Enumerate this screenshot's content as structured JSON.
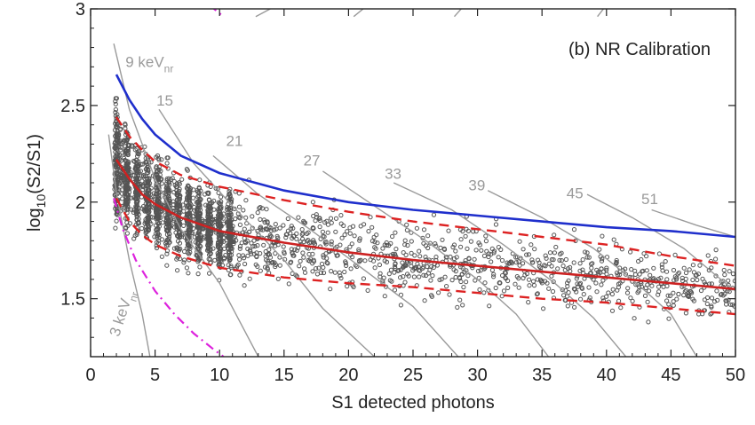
{
  "chart_data": {
    "type": "scatter",
    "panel_label": "(b) NR Calibration",
    "xlabel": "S1 detected photons",
    "ylabel_main": "log",
    "ylabel_sub": "10",
    "ylabel_rest": "(S2/S1)",
    "xlim": [
      0,
      50
    ],
    "ylim": [
      1.2,
      3.0
    ],
    "x_ticks": [
      0,
      5,
      10,
      15,
      20,
      25,
      30,
      35,
      40,
      45,
      50
    ],
    "x_tick_labels": [
      "0",
      "5",
      "10",
      "15",
      "20",
      "25",
      "30",
      "35",
      "40",
      "45",
      "50"
    ],
    "y_ticks": [
      1.5,
      2,
      2.5,
      3
    ],
    "y_tick_labels": [
      "1.5",
      "2",
      "2.5",
      "3"
    ],
    "colors": {
      "points": "#555555",
      "band_median": "#cc2222",
      "band_edge": "#dd2222",
      "er_median": "#1f2fcc",
      "contour": "#9a9a9a",
      "threshold": "#dd22dd"
    },
    "series": [
      {
        "role": "er_band_median",
        "style": "solid-blue",
        "points": [
          [
            2.0,
            2.66
          ],
          [
            3,
            2.53
          ],
          [
            4,
            2.43
          ],
          [
            5,
            2.35
          ],
          [
            7,
            2.24
          ],
          [
            10,
            2.15
          ],
          [
            15,
            2.06
          ],
          [
            20,
            2.0
          ],
          [
            25,
            1.96
          ],
          [
            30,
            1.93
          ],
          [
            35,
            1.9
          ],
          [
            40,
            1.87
          ],
          [
            45,
            1.85
          ],
          [
            50,
            1.82
          ]
        ]
      },
      {
        "role": "nr_band_median",
        "style": "solid-red",
        "points": [
          [
            2.0,
            2.22
          ],
          [
            3,
            2.12
          ],
          [
            4,
            2.04
          ],
          [
            5,
            1.99
          ],
          [
            7,
            1.92
          ],
          [
            10,
            1.85
          ],
          [
            15,
            1.79
          ],
          [
            20,
            1.74
          ],
          [
            25,
            1.7
          ],
          [
            30,
            1.67
          ],
          [
            35,
            1.64
          ],
          [
            40,
            1.61
          ],
          [
            45,
            1.58
          ],
          [
            50,
            1.55
          ]
        ]
      },
      {
        "role": "nr_band_upper",
        "style": "dashed-red",
        "points": [
          [
            2.0,
            2.44
          ],
          [
            3,
            2.34
          ],
          [
            4,
            2.27
          ],
          [
            5,
            2.21
          ],
          [
            7,
            2.14
          ],
          [
            10,
            2.08
          ],
          [
            15,
            2.01
          ],
          [
            20,
            1.95
          ],
          [
            25,
            1.9
          ],
          [
            30,
            1.86
          ],
          [
            35,
            1.82
          ],
          [
            40,
            1.78
          ],
          [
            45,
            1.72
          ],
          [
            50,
            1.67
          ]
        ]
      },
      {
        "role": "nr_band_lower",
        "style": "dashed-red",
        "points": [
          [
            2.0,
            2.02
          ],
          [
            3,
            1.9
          ],
          [
            4,
            1.83
          ],
          [
            5,
            1.78
          ],
          [
            7,
            1.72
          ],
          [
            10,
            1.66
          ],
          [
            15,
            1.61
          ],
          [
            20,
            1.58
          ],
          [
            25,
            1.56
          ],
          [
            30,
            1.53
          ],
          [
            35,
            1.5
          ],
          [
            40,
            1.48
          ],
          [
            45,
            1.45
          ],
          [
            50,
            1.42
          ]
        ]
      },
      {
        "role": "s2_threshold",
        "style": "dash-dot-magenta",
        "points": [
          [
            1.8,
            2.02
          ],
          [
            2.5,
            1.86
          ],
          [
            3.5,
            1.7
          ],
          [
            5,
            1.54
          ],
          [
            6.5,
            1.42
          ],
          [
            8,
            1.32
          ],
          [
            9.5,
            1.24
          ],
          [
            10.3,
            1.2
          ]
        ]
      },
      {
        "role": "s2_threshold_top",
        "style": "dash-dot-magenta",
        "points": [
          [
            9.2,
            3.02
          ],
          [
            10.3,
            2.96
          ]
        ]
      }
    ],
    "energy_contours": [
      {
        "label": "3 keV",
        "label_sub": "nr",
        "points": [
          [
            1.4,
            2.35
          ],
          [
            2,
            2.05
          ],
          [
            3,
            1.7
          ],
          [
            4,
            1.42
          ],
          [
            4.6,
            1.2
          ]
        ]
      },
      {
        "label": "9 keV",
        "label_sub": "nr",
        "points": [
          [
            1.8,
            2.82
          ],
          [
            3,
            2.48
          ],
          [
            5,
            2.12
          ],
          [
            7,
            1.86
          ],
          [
            10,
            1.58
          ],
          [
            13,
            1.2
          ]
        ]
      },
      {
        "label": "15",
        "points": [
          [
            5.3,
            2.48
          ],
          [
            8,
            2.2
          ],
          [
            11,
            1.98
          ],
          [
            15,
            1.7
          ],
          [
            18,
            1.45
          ],
          [
            22,
            1.2
          ]
        ]
      },
      {
        "label": "21",
        "points": [
          [
            9.5,
            2.24
          ],
          [
            13,
            2.04
          ],
          [
            17,
            1.86
          ],
          [
            21,
            1.66
          ],
          [
            25,
            1.46
          ],
          [
            28.5,
            1.2
          ]
        ]
      },
      {
        "label": "27",
        "points": [
          [
            18,
            2.16
          ],
          [
            22,
            1.98
          ],
          [
            26,
            1.8
          ],
          [
            30,
            1.6
          ],
          [
            33,
            1.42
          ],
          [
            35.5,
            1.2
          ]
        ]
      },
      {
        "label": "33",
        "points": [
          [
            23.5,
            2.1
          ],
          [
            28,
            1.96
          ],
          [
            32,
            1.78
          ],
          [
            36,
            1.58
          ],
          [
            39,
            1.4
          ],
          [
            41.5,
            1.2
          ]
        ]
      },
      {
        "label": "39",
        "points": [
          [
            30.8,
            2.06
          ],
          [
            35,
            1.92
          ],
          [
            39,
            1.76
          ],
          [
            42,
            1.6
          ],
          [
            45,
            1.42
          ],
          [
            47,
            1.2
          ]
        ]
      },
      {
        "label": "45",
        "points": [
          [
            38.5,
            2.04
          ],
          [
            42,
            1.92
          ],
          [
            46,
            1.76
          ],
          [
            48.5,
            1.62
          ],
          [
            50,
            1.54
          ]
        ]
      },
      {
        "label": "51",
        "points": [
          [
            43.5,
            1.96
          ],
          [
            47,
            1.88
          ],
          [
            50,
            1.82
          ]
        ]
      }
    ],
    "contour_tops": [
      {
        "points": [
          [
            14.5,
            3.02
          ],
          [
            12.8,
            2.96
          ]
        ]
      },
      {
        "points": [
          [
            21.5,
            3.02
          ],
          [
            20.4,
            2.96
          ]
        ]
      },
      {
        "points": [
          [
            29,
            3.02
          ],
          [
            28.2,
            2.96
          ]
        ]
      },
      {
        "points": [
          [
            40,
            3.02
          ],
          [
            39.3,
            2.96
          ]
        ]
      }
    ],
    "scatter_description": "Dense cloud of roughly several thousand NR calibration events clustered around the red median, spanning S1 2–50 and log10(S2/S1) 1.2–2.9."
  }
}
